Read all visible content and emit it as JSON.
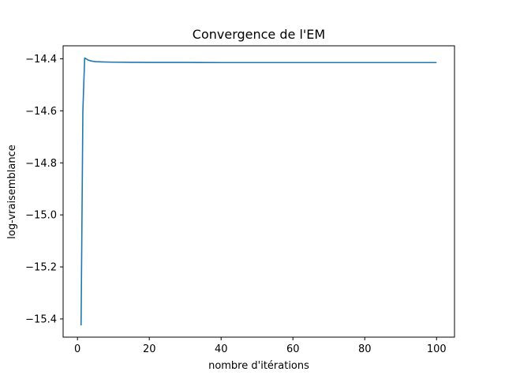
{
  "chart_data": {
    "type": "line",
    "title": "Convergence de l'EM",
    "xlabel": "nombre d'itérations",
    "ylabel": "log-vraisemblance",
    "xlim": [
      -4,
      105
    ],
    "ylim": [
      -15.47,
      -14.35
    ],
    "xticks": [
      0,
      20,
      40,
      60,
      80,
      100
    ],
    "yticks": [
      -15.4,
      -15.2,
      -15.0,
      -14.8,
      -14.6,
      -14.4
    ],
    "ytick_labels": [
      "−15.4",
      "−15.2",
      "−15.0",
      "−14.8",
      "−14.6",
      "−14.4"
    ],
    "grid": false,
    "series": [
      {
        "color": "#1f77b4",
        "x": [
          1,
          1.5,
          2,
          2.5,
          3,
          4,
          5,
          7,
          10,
          15,
          20,
          30,
          40,
          60,
          80,
          100
        ],
        "y": [
          -15.425,
          -14.6,
          -14.397,
          -14.401,
          -14.405,
          -14.409,
          -14.411,
          -14.412,
          -14.413,
          -14.4135,
          -14.414,
          -14.414,
          -14.4145,
          -14.4145,
          -14.4145,
          -14.4145
        ]
      }
    ]
  }
}
